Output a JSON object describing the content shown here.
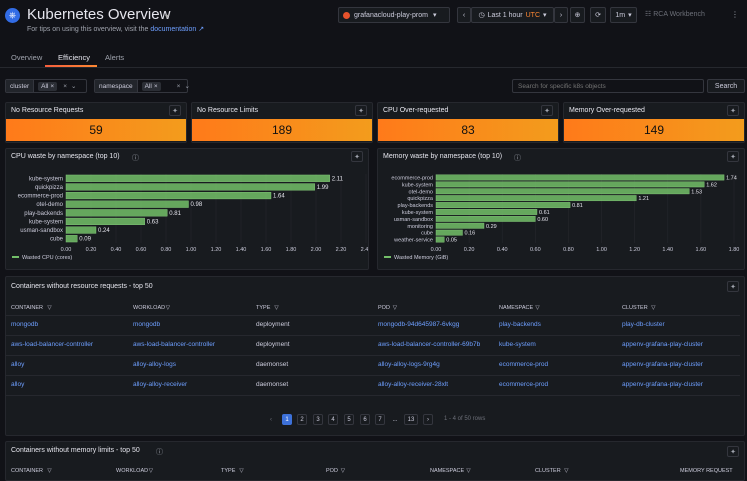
{
  "header": {
    "title": "Kubernetes Overview",
    "subtitle_prefix": "For tips on using this overview, visit the",
    "subtitle_link": "documentation",
    "datasource": "grafanacloud-play-prom",
    "time_range": "Last 1 hour",
    "timezone": "UTC",
    "refresh": "1m",
    "workbench": "RCA Workbench"
  },
  "tabs": [
    {
      "label": "Overview"
    },
    {
      "label": "Efficiency"
    },
    {
      "label": "Alerts"
    }
  ],
  "filters": {
    "cluster_label": "cluster",
    "cluster_value": "All",
    "namespace_label": "namespace",
    "namespace_value": "All",
    "search_placeholder": "Search for specific k8s objects",
    "search_button": "Search"
  },
  "stats": [
    {
      "title": "No Resource Requests",
      "value": "59"
    },
    {
      "title": "No Resource Limits",
      "value": "189"
    },
    {
      "title": "CPU Over-requested",
      "value": "83"
    },
    {
      "title": "Memory Over-requested",
      "value": "149"
    }
  ],
  "colors": {
    "bar": "#73bf69",
    "accent": "#ff7a1a",
    "link": "#6e9fff"
  },
  "chart_data": [
    {
      "type": "bar",
      "orientation": "horizontal",
      "title": "CPU waste by namespace (top 10)",
      "categories": [
        "kube-system",
        "quickpizza",
        "ecommerce-prod",
        "otel-demo",
        "play-backends",
        "kube-system",
        "usman-sandbox",
        "cube"
      ],
      "values": [
        2.11,
        1.99,
        1.64,
        0.98,
        0.81,
        0.63,
        0.24,
        0.09
      ],
      "value_labels": [
        "2.11",
        "1.99",
        "1.64",
        "0.98",
        "0.81",
        "0.63",
        "0.24",
        "0.09"
      ],
      "xlim": [
        0,
        2.4
      ],
      "ticks": [
        0,
        0.2,
        0.4,
        0.6,
        0.8,
        1.0,
        1.2,
        1.4,
        1.6,
        1.8,
        2.0,
        2.2,
        2.4
      ],
      "tick_labels": [
        "0.00",
        "0.20",
        "0.40",
        "0.60",
        "0.80",
        "1.00",
        "1.20",
        "1.40",
        "1.60",
        "1.80",
        "2.00",
        "2.20",
        "2.40"
      ],
      "series": [
        {
          "name": "Wasted CPU (cores)"
        }
      ],
      "legend": "bottom-left"
    },
    {
      "type": "bar",
      "orientation": "horizontal",
      "title": "Memory waste by namespace (top 10)",
      "categories": [
        "ecommerce-prod",
        "kube-system",
        "otel-demo",
        "quickpizza",
        "play-backends",
        "kube-system",
        "usman-sandbox",
        "monitoring",
        "cube",
        "weather-service"
      ],
      "values": [
        1.74,
        1.62,
        1.53,
        1.21,
        0.81,
        0.61,
        0.6,
        0.29,
        0.16,
        0.05
      ],
      "value_labels": [
        "1.74",
        "1.62",
        "1.53",
        "1.21",
        "0.81",
        "0.61",
        "0.60",
        "0.29",
        "0.16",
        "0.05"
      ],
      "xlim": [
        0,
        1.8
      ],
      "ticks": [
        0,
        0.2,
        0.4,
        0.6,
        0.8,
        1.0,
        1.2,
        1.4,
        1.6,
        1.8
      ],
      "tick_labels": [
        "0.00",
        "0.20",
        "0.40",
        "0.60",
        "0.80",
        "1.00",
        "1.20",
        "1.40",
        "1.60",
        "1.80"
      ],
      "series": [
        {
          "name": "Wasted Memory (GiB)"
        }
      ],
      "legend": "bottom-left"
    }
  ],
  "table1": {
    "title": "Containers without resource requests - top 50",
    "columns": [
      "CONTAINER",
      "WORKLOAD",
      "TYPE",
      "POD",
      "NAMESPACE",
      "CLUSTER"
    ],
    "rows": [
      [
        "mongodb",
        "mongodb",
        "deployment",
        "mongodb-94d645987-6vkgg",
        "play-backends",
        "play-db-cluster"
      ],
      [
        "aws-load-balancer-controller",
        "aws-load-balancer-controller",
        "deployment",
        "aws-load-balancer-controller-69b7b",
        "kube-system",
        "appenv-grafana-play-cluster"
      ],
      [
        "alloy",
        "alloy-alloy-logs",
        "daemonset",
        "alloy-alloy-logs-9rg4g",
        "ecommerce-prod",
        "appenv-grafana-play-cluster"
      ],
      [
        "alloy",
        "alloy-alloy-receiver",
        "daemonset",
        "alloy-alloy-receiver-28xlt",
        "ecommerce-prod",
        "appenv-grafana-play-cluster"
      ]
    ],
    "pages": [
      "1",
      "2",
      "3",
      "4",
      "5",
      "6",
      "7",
      "...",
      "13"
    ],
    "range": "1 - 4 of 50 rows"
  },
  "table2": {
    "title": "Containers without memory limits - top 50",
    "columns": [
      "CONTAINER",
      "WORKLOAD",
      "TYPE",
      "POD",
      "NAMESPACE",
      "CLUSTER",
      "MEMORY REQUEST"
    ]
  }
}
